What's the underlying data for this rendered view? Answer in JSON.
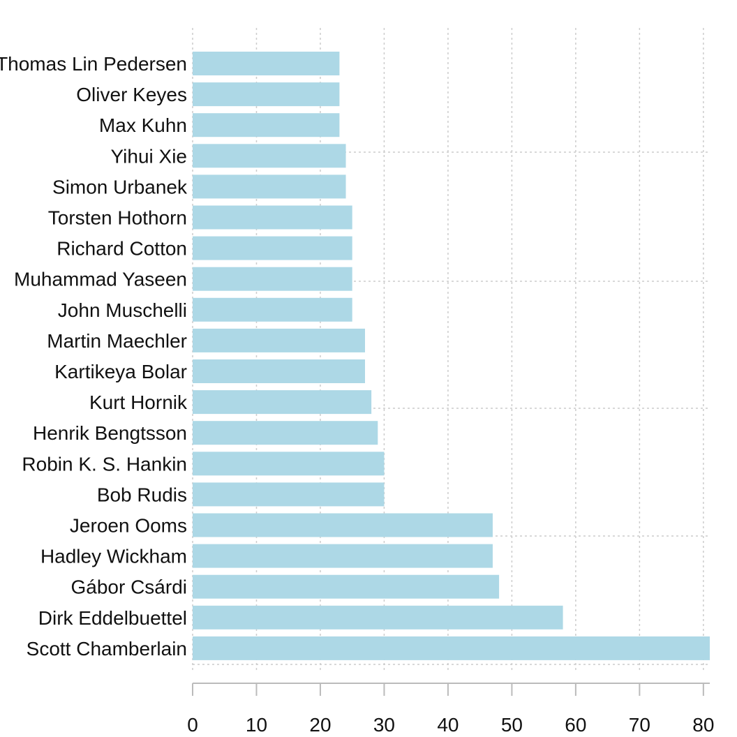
{
  "chart_data": {
    "type": "bar",
    "orientation": "horizontal",
    "title": "",
    "xlabel": "",
    "ylabel": "",
    "categories": [
      "Thomas Lin Pedersen",
      "Oliver Keyes",
      "Max Kuhn",
      "Yihui Xie",
      "Simon Urbanek",
      "Torsten Hothorn",
      "Richard Cotton",
      "Muhammad Yaseen",
      "John Muschelli",
      "Martin Maechler",
      "Kartikeya Bolar",
      "Kurt Hornik",
      "Henrik Bengtsson",
      "Robin K. S. Hankin",
      "Bob Rudis",
      "Jeroen Ooms",
      "Hadley Wickham",
      "Gábor Csárdi",
      "Dirk Eddelbuettel",
      "Scott Chamberlain"
    ],
    "values": [
      23,
      23,
      23,
      24,
      24,
      25,
      25,
      25,
      25,
      27,
      27,
      28,
      29,
      30,
      30,
      47,
      47,
      48,
      58,
      81
    ],
    "xlim": [
      0,
      81
    ],
    "xticks": [
      0,
      10,
      20,
      30,
      40,
      50,
      60,
      70,
      80
    ],
    "grid": true,
    "legend": "none",
    "bar_color": "#add8e6"
  }
}
